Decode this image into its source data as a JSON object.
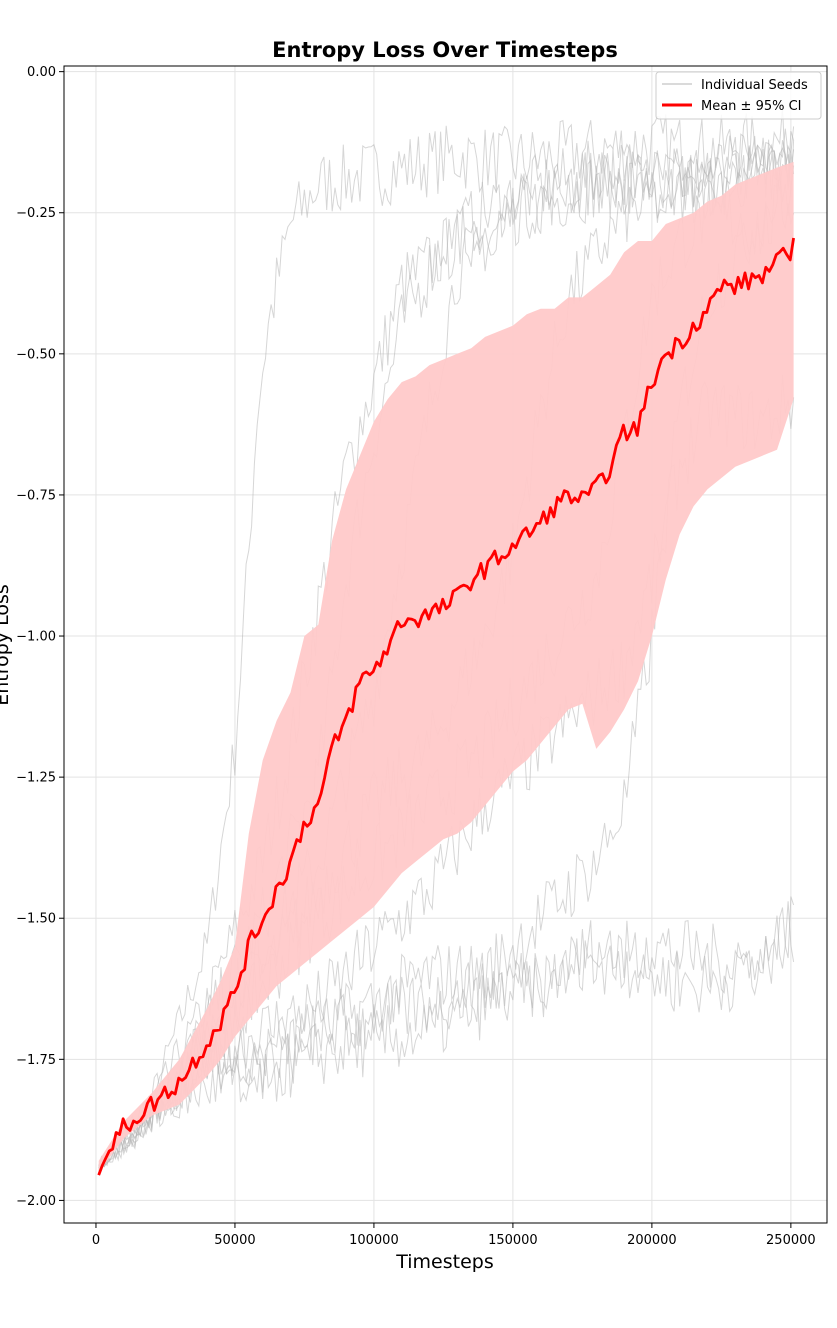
{
  "chart_data": {
    "type": "line",
    "title": "Entropy Loss Over Timesteps",
    "xlabel": "Timesteps",
    "ylabel": "Entropy Loss",
    "xlim": [
      -11500,
      263000
    ],
    "ylim": [
      -2.04,
      0.01
    ],
    "xticks": [
      0,
      50000,
      100000,
      150000,
      200000,
      250000
    ],
    "xtick_labels": [
      "0",
      "50000",
      "100000",
      "150000",
      "200000",
      "250000"
    ],
    "yticks": [
      0.0,
      -0.25,
      -0.5,
      -0.75,
      -1.0,
      -1.25,
      -1.5,
      -1.75,
      -2.0
    ],
    "ytick_labels": [
      "0.00",
      "−0.25",
      "−0.50",
      "−0.75",
      "−1.00",
      "−1.25",
      "−1.50",
      "−1.75",
      "−2.00"
    ],
    "grid": true,
    "legend": {
      "position": "top-right",
      "entries": [
        "Individual Seeds",
        "Mean ± 95% CI"
      ]
    },
    "colors": {
      "seed": "#b4b4b4",
      "mean": "#ff0000",
      "ci_fill": "#ffc9c9"
    },
    "seeds": [
      {
        "x": [
          1000,
          20000,
          40000,
          50000,
          55000,
          58000,
          62000,
          65000,
          70000,
          80000,
          100000,
          130000,
          150000,
          180000,
          200000,
          220000,
          240000,
          251000
        ],
        "y": [
          -1.94,
          -1.82,
          -1.55,
          -1.2,
          -0.85,
          -0.6,
          -0.45,
          -0.38,
          -0.27,
          -0.2,
          -0.18,
          -0.15,
          -0.16,
          -0.14,
          -0.13,
          -0.14,
          -0.13,
          -0.12
        ]
      },
      {
        "x": [
          1000,
          20000,
          40000,
          60000,
          70000,
          80000,
          90000,
          100000,
          110000,
          130000,
          150000,
          180000,
          200000,
          220000,
          240000,
          251000
        ],
        "y": [
          -1.94,
          -1.83,
          -1.65,
          -1.4,
          -1.2,
          -0.95,
          -0.7,
          -0.55,
          -0.38,
          -0.3,
          -0.25,
          -0.2,
          -0.19,
          -0.2,
          -0.17,
          -0.15
        ]
      },
      {
        "x": [
          1000,
          20000,
          40000,
          60000,
          80000,
          90000,
          100000,
          110000,
          125000,
          150000,
          180000,
          200000,
          220000,
          240000,
          251000
        ],
        "y": [
          -1.94,
          -1.84,
          -1.68,
          -1.5,
          -1.25,
          -0.9,
          -0.65,
          -0.45,
          -0.3,
          -0.22,
          -0.18,
          -0.2,
          -0.18,
          -0.16,
          -0.15
        ]
      },
      {
        "x": [
          1000,
          20000,
          40000,
          60000,
          80000,
          100000,
          110000,
          120000,
          130000,
          150000,
          170000,
          200000,
          220000,
          240000,
          251000
        ],
        "y": [
          -1.94,
          -1.84,
          -1.7,
          -1.55,
          -1.4,
          -1.1,
          -0.85,
          -0.6,
          -0.35,
          -0.25,
          -0.2,
          -0.18,
          -0.2,
          -0.18,
          -0.15
        ]
      },
      {
        "x": [
          1000,
          20000,
          40000,
          60000,
          80000,
          100000,
          120000,
          140000,
          150000,
          160000,
          170000,
          190000,
          220000,
          240000,
          251000
        ],
        "y": [
          -1.94,
          -1.85,
          -1.72,
          -1.6,
          -1.45,
          -1.3,
          -1.2,
          -1.0,
          -0.85,
          -0.6,
          -0.4,
          -0.25,
          -0.2,
          -0.18,
          -0.17
        ]
      },
      {
        "x": [
          1000,
          20000,
          40000,
          60000,
          80000,
          100000,
          120000,
          140000,
          160000,
          180000,
          190000,
          200000,
          210000,
          220000,
          240000,
          251000
        ],
        "y": [
          -1.94,
          -1.85,
          -1.73,
          -1.62,
          -1.5,
          -1.4,
          -1.3,
          -1.2,
          -1.05,
          -0.9,
          -0.65,
          -0.4,
          -0.3,
          -0.25,
          -0.28,
          -0.22
        ]
      },
      {
        "x": [
          1000,
          20000,
          40000,
          60000,
          80000,
          100000,
          120000,
          140000,
          160000,
          180000,
          190000,
          200000,
          210000,
          220000,
          240000,
          251000
        ],
        "y": [
          -1.94,
          -1.86,
          -1.75,
          -1.7,
          -1.65,
          -1.55,
          -1.45,
          -1.3,
          -1.2,
          -1.1,
          -1.05,
          -0.9,
          -0.7,
          -0.6,
          -0.62,
          -0.58
        ]
      },
      {
        "x": [
          1000,
          20000,
          40000,
          60000,
          80000,
          100000,
          120000,
          140000,
          160000,
          180000,
          190000,
          200000,
          210000,
          220000,
          240000,
          251000
        ],
        "y": [
          -1.94,
          -1.85,
          -1.76,
          -1.78,
          -1.7,
          -1.65,
          -1.6,
          -1.6,
          -1.5,
          -1.4,
          -1.3,
          -1.0,
          -0.6,
          -0.4,
          -0.25,
          -0.2
        ]
      },
      {
        "x": [
          1000,
          20000,
          40000,
          60000,
          80000,
          100000,
          120000,
          140000,
          160000,
          180000,
          200000,
          220000,
          240000,
          251000
        ],
        "y": [
          -1.94,
          -1.85,
          -1.75,
          -1.74,
          -1.7,
          -1.68,
          -1.65,
          -1.62,
          -1.6,
          -1.58,
          -1.55,
          -1.57,
          -1.58,
          -1.5
        ]
      },
      {
        "x": [
          1000,
          20000,
          40000,
          60000,
          80000,
          100000,
          120000,
          140000,
          160000,
          180000,
          200000,
          220000,
          240000,
          251000
        ],
        "y": [
          -1.94,
          -1.86,
          -1.8,
          -1.78,
          -1.74,
          -1.72,
          -1.7,
          -1.65,
          -1.62,
          -1.55,
          -1.6,
          -1.62,
          -1.58,
          -1.52
        ]
      }
    ],
    "mean": {
      "x": [
        1000,
        10000,
        20000,
        30000,
        40000,
        45000,
        50000,
        55000,
        60000,
        65000,
        70000,
        75000,
        80000,
        85000,
        90000,
        95000,
        100000,
        105000,
        110000,
        115000,
        120000,
        125000,
        130000,
        135000,
        140000,
        145000,
        150000,
        155000,
        160000,
        165000,
        170000,
        175000,
        180000,
        185000,
        190000,
        195000,
        200000,
        205000,
        210000,
        215000,
        220000,
        225000,
        230000,
        235000,
        240000,
        245000,
        251000
      ],
      "y": [
        -1.94,
        -1.87,
        -1.83,
        -1.79,
        -1.72,
        -1.68,
        -1.63,
        -1.55,
        -1.5,
        -1.45,
        -1.4,
        -1.33,
        -1.3,
        -1.2,
        -1.15,
        -1.08,
        -1.06,
        -1.02,
        -0.97,
        -0.97,
        -0.96,
        -0.95,
        -0.93,
        -0.9,
        -0.88,
        -0.86,
        -0.84,
        -0.82,
        -0.8,
        -0.77,
        -0.75,
        -0.76,
        -0.74,
        -0.7,
        -0.64,
        -0.63,
        -0.55,
        -0.5,
        -0.48,
        -0.45,
        -0.42,
        -0.38,
        -0.38,
        -0.37,
        -0.36,
        -0.34,
        -0.31
      ]
    },
    "ci_upper": [
      -1.93,
      -1.86,
      -1.81,
      -1.75,
      -1.66,
      -1.61,
      -1.55,
      -1.35,
      -1.22,
      -1.15,
      -1.1,
      -1.0,
      -0.98,
      -0.83,
      -0.74,
      -0.68,
      -0.62,
      -0.58,
      -0.55,
      -0.54,
      -0.52,
      -0.51,
      -0.5,
      -0.49,
      -0.47,
      -0.46,
      -0.45,
      -0.43,
      -0.42,
      -0.42,
      -0.4,
      -0.4,
      -0.38,
      -0.36,
      -0.32,
      -0.3,
      -0.3,
      -0.27,
      -0.26,
      -0.25,
      -0.23,
      -0.22,
      -0.2,
      -0.19,
      -0.18,
      -0.17,
      -0.16
    ],
    "ci_lower": [
      -1.95,
      -1.89,
      -1.85,
      -1.83,
      -1.78,
      -1.75,
      -1.71,
      -1.68,
      -1.65,
      -1.62,
      -1.6,
      -1.58,
      -1.56,
      -1.54,
      -1.52,
      -1.5,
      -1.48,
      -1.45,
      -1.42,
      -1.4,
      -1.38,
      -1.36,
      -1.35,
      -1.33,
      -1.3,
      -1.27,
      -1.24,
      -1.22,
      -1.19,
      -1.16,
      -1.13,
      -1.12,
      -1.2,
      -1.17,
      -1.13,
      -1.08,
      -1.0,
      -0.9,
      -0.82,
      -0.77,
      -0.74,
      -0.72,
      -0.7,
      -0.69,
      -0.68,
      -0.67,
      -0.58
    ]
  }
}
